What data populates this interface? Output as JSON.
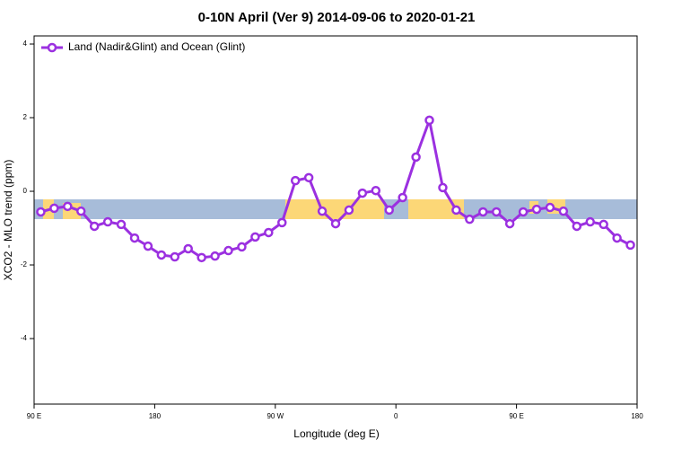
{
  "chart_data": {
    "type": "line",
    "title": "0-10N April (Ver 9)   2014-09-06 to 2020-01-21",
    "x_label": "Longitude (deg E)",
    "y_label": "XCO2 - MLO trend (ppm)",
    "x": [
      95,
      105,
      115,
      125,
      135,
      145,
      155,
      165,
      175,
      185,
      195,
      205,
      215,
      225,
      235,
      245,
      255,
      265,
      275,
      285,
      295,
      305,
      315,
      325,
      335,
      345,
      355,
      365,
      375,
      385,
      395,
      405,
      415,
      425,
      435,
      445,
      455,
      465,
      475,
      485,
      495,
      505,
      515,
      525,
      535
    ],
    "series": [
      {
        "name": "Land (Nadir&Glint) and Ocean (Glint)",
        "color": "#9b30e0",
        "values": [
          -0.56,
          -0.46,
          -0.41,
          -0.54,
          -0.95,
          -0.83,
          -0.9,
          -1.27,
          -1.49,
          -1.73,
          -1.78,
          -1.56,
          -1.8,
          -1.76,
          -1.61,
          -1.51,
          -1.24,
          -1.12,
          -0.85,
          0.29,
          0.37,
          -0.54,
          -0.88,
          -0.51,
          -0.05,
          0.02,
          -0.51,
          -0.17,
          0.93,
          1.93,
          0.1,
          -0.51,
          -0.76,
          -0.56,
          -0.56,
          -0.88,
          -0.56,
          -0.49,
          -0.44,
          -0.54,
          -0.95,
          -0.83,
          -0.9,
          -1.27,
          -1.46
        ]
      }
    ],
    "xlim": [
      90,
      540
    ],
    "xticks": [
      {
        "value": 90,
        "label": "90 E"
      },
      {
        "value": 180,
        "label": "180"
      },
      {
        "value": 270,
        "label": "90 W"
      },
      {
        "value": 360,
        "label": "0"
      },
      {
        "value": 450,
        "label": "90 E"
      },
      {
        "value": 540,
        "label": "180"
      }
    ],
    "ylim": [
      -5.78,
      4.22
    ],
    "yticks": [
      -4,
      -2,
      0,
      2,
      4
    ],
    "legend": "top-left"
  }
}
